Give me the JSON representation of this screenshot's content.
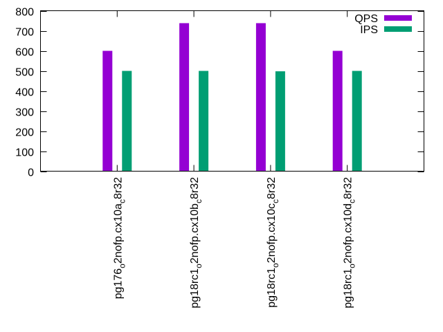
{
  "chart_data": {
    "type": "bar",
    "categories": [
      {
        "base": "pg176",
        "sub1": "o",
        "mid": "2nofp.cx10a",
        "sub2": "c",
        "tail": "8r32"
      },
      {
        "base": "pg18rc1",
        "sub1": "o",
        "mid": "2nofp.cx10b",
        "sub2": "c",
        "tail": "8r32"
      },
      {
        "base": "pg18rc1",
        "sub1": "o",
        "mid": "2nofp.cx10c",
        "sub2": "c",
        "tail": "8r32"
      },
      {
        "base": "pg18rc1",
        "sub1": "o",
        "mid": "2nofp.cx10d",
        "sub2": "c",
        "tail": "8r32"
      }
    ],
    "series": [
      {
        "name": "QPS",
        "color": "#9400d3",
        "values": [
          600,
          738,
          738,
          600
        ]
      },
      {
        "name": "IPS",
        "color": "#009e73",
        "values": [
          500,
          500,
          498,
          500
        ]
      }
    ],
    "yticks": [
      "0",
      "100",
      "200",
      "300",
      "400",
      "500",
      "600",
      "700",
      "800"
    ],
    "ylim": [
      0,
      800
    ],
    "grid": false,
    "legend": "top-right"
  }
}
